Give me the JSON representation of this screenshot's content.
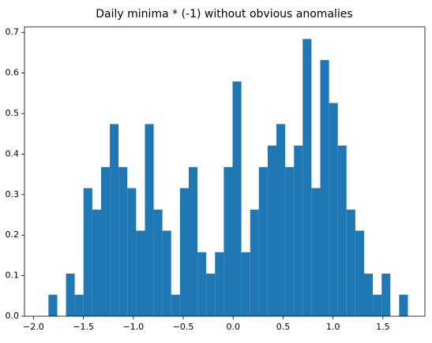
{
  "chart_data": {
    "type": "histogram",
    "title": "Daily minima * (-1) without obvious anomalies",
    "bins": [
      -1.85,
      -1.762,
      -1.674,
      -1.587,
      -1.499,
      -1.411,
      -1.323,
      -1.235,
      -1.148,
      -1.06,
      -0.972,
      -0.884,
      -0.796,
      -0.709,
      -0.621,
      -0.533,
      -0.445,
      -0.357,
      -0.27,
      -0.182,
      -0.094,
      -0.006,
      0.082,
      0.17,
      0.257,
      0.345,
      0.433,
      0.521,
      0.609,
      0.696,
      0.784,
      0.872,
      0.96,
      1.048,
      1.135,
      1.223,
      1.311,
      1.399,
      1.487,
      1.574,
      1.662,
      1.75
    ],
    "values": [
      0.053,
      0,
      0.105,
      0.053,
      0.316,
      0.263,
      0.368,
      0.474,
      0.368,
      0.316,
      0.211,
      0.474,
      0.263,
      0.211,
      0.053,
      0.316,
      0.368,
      0.158,
      0.105,
      0.158,
      0.368,
      0.579,
      0.158,
      0.263,
      0.368,
      0.421,
      0.474,
      0.368,
      0.421,
      0.684,
      0.316,
      0.632,
      0.526,
      0.421,
      0.263,
      0.211,
      0.105,
      0.053,
      0.105,
      0,
      0.053
    ],
    "color": "#1f77b4",
    "xlim": [
      -2.09,
      1.92
    ],
    "xticks": [
      -2.0,
      -1.5,
      -1.0,
      -0.5,
      0.0,
      0.5,
      1.0,
      1.5
    ],
    "ylim": [
      0,
      0.714
    ],
    "yticks": [
      0.0,
      0.1,
      0.2,
      0.3,
      0.4,
      0.5,
      0.6,
      0.7
    ]
  }
}
